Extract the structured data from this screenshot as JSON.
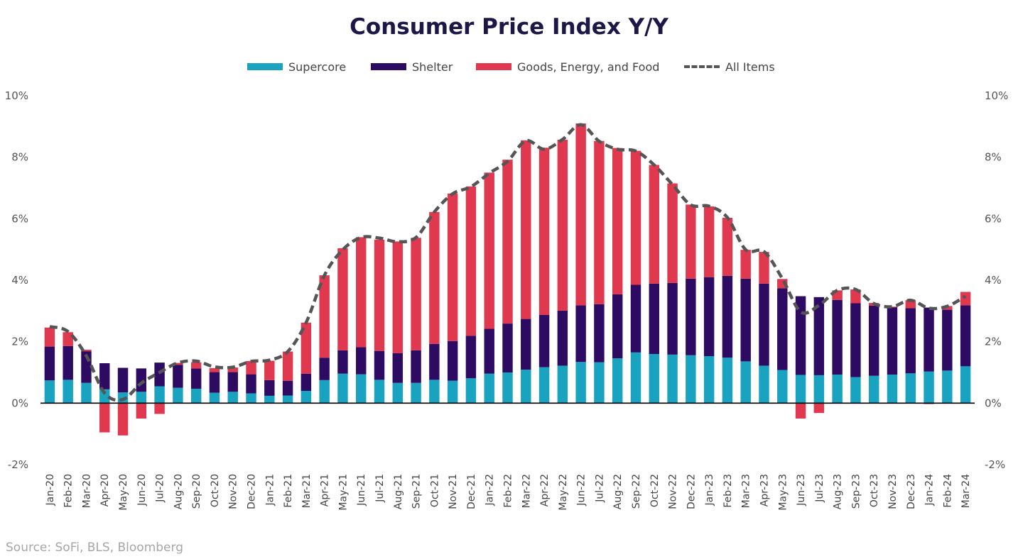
{
  "chart_data": {
    "type": "bar",
    "title": "Consumer Price Index Y/Y",
    "source": "Source: SoFi, BLS, Bloomberg",
    "ylim": [
      -2,
      10
    ],
    "yticks": [
      "-2%",
      "0%",
      "2%",
      "4%",
      "6%",
      "8%",
      "10%"
    ],
    "yticks_right": [
      "-2%",
      "0%",
      "2%",
      "4%",
      "6%",
      "8%",
      "10%"
    ],
    "grid": false,
    "legend_position": "top",
    "stacked": true,
    "categories": [
      "Jan-20",
      "Feb-20",
      "Mar-20",
      "Apr-20",
      "May-20",
      "Jun-20",
      "Jul-20",
      "Aug-20",
      "Sep-20",
      "Oct-20",
      "Nov-20",
      "Dec-20",
      "Jan-21",
      "Feb-21",
      "Mar-21",
      "Apr-21",
      "May-21",
      "Jun-21",
      "Jul-21",
      "Aug-21",
      "Sep-21",
      "Oct-21",
      "Nov-21",
      "Dec-21",
      "Jan-22",
      "Feb-22",
      "Mar-22",
      "Apr-22",
      "May-22",
      "Jun-22",
      "Jul-22",
      "Aug-22",
      "Sep-22",
      "Oct-22",
      "Nov-22",
      "Dec-22",
      "Jan-23",
      "Feb-23",
      "Mar-23",
      "Apr-23",
      "May-23",
      "Jun-23",
      "Jul-23",
      "Aug-23",
      "Sep-23",
      "Oct-23",
      "Nov-23",
      "Dec-23",
      "Jan-24",
      "Feb-24",
      "Mar-24"
    ],
    "series": [
      {
        "name": "Supercore",
        "kind": "bar",
        "color": "#1aa3c0",
        "values": [
          0.74,
          0.76,
          0.66,
          0.45,
          0.35,
          0.37,
          0.55,
          0.5,
          0.47,
          0.34,
          0.37,
          0.32,
          0.24,
          0.25,
          0.4,
          0.75,
          0.96,
          0.94,
          0.76,
          0.66,
          0.66,
          0.76,
          0.73,
          0.81,
          0.96,
          1.0,
          1.09,
          1.17,
          1.22,
          1.34,
          1.33,
          1.46,
          1.65,
          1.6,
          1.58,
          1.56,
          1.53,
          1.48,
          1.36,
          1.22,
          1.08,
          0.92,
          0.91,
          0.93,
          0.85,
          0.89,
          0.93,
          0.97,
          1.03,
          1.06,
          1.2
        ]
      },
      {
        "name": "Shelter",
        "kind": "bar",
        "color": "#2d0b62",
        "values": [
          1.1,
          1.1,
          1.03,
          0.85,
          0.8,
          0.76,
          0.77,
          0.75,
          0.66,
          0.67,
          0.64,
          0.62,
          0.51,
          0.48,
          0.56,
          0.73,
          0.76,
          0.88,
          0.94,
          0.97,
          1.06,
          1.17,
          1.29,
          1.38,
          1.46,
          1.59,
          1.65,
          1.7,
          1.79,
          1.84,
          1.89,
          2.08,
          2.2,
          2.29,
          2.33,
          2.49,
          2.57,
          2.66,
          2.69,
          2.67,
          2.66,
          2.56,
          2.54,
          2.43,
          2.4,
          2.28,
          2.19,
          2.12,
          2.08,
          1.98,
          1.98
        ]
      },
      {
        "name": "Goods, Energy, and Food",
        "kind": "bar",
        "color": "#e0394f",
        "values": [
          0.62,
          0.45,
          0.05,
          -0.95,
          -1.05,
          -0.5,
          -0.35,
          0.06,
          0.2,
          0.13,
          0.15,
          0.43,
          0.63,
          0.95,
          1.66,
          2.68,
          3.32,
          3.58,
          3.62,
          3.63,
          3.66,
          4.29,
          4.8,
          4.86,
          5.08,
          5.33,
          5.81,
          5.44,
          5.56,
          5.92,
          5.31,
          4.76,
          4.36,
          3.86,
          3.24,
          2.41,
          2.3,
          1.89,
          0.94,
          1.03,
          0.3,
          -0.5,
          -0.32,
          0.31,
          0.45,
          0.09,
          0.02,
          0.26,
          -0.03,
          0.12,
          0.44
        ]
      },
      {
        "name": "All Items",
        "kind": "line",
        "color": "#555555",
        "values": [
          2.49,
          2.33,
          1.54,
          0.33,
          0.12,
          0.65,
          1.0,
          1.31,
          1.37,
          1.18,
          1.17,
          1.36,
          1.4,
          1.68,
          2.62,
          4.16,
          4.99,
          5.39,
          5.37,
          5.25,
          5.39,
          6.22,
          6.81,
          7.04,
          7.48,
          7.87,
          8.54,
          8.26,
          8.58,
          9.06,
          8.52,
          8.26,
          8.2,
          7.75,
          7.11,
          6.45,
          6.41,
          6.04,
          4.99,
          4.93,
          4.05,
          2.97,
          3.18,
          3.67,
          3.7,
          3.24,
          3.14,
          3.35,
          3.09,
          3.15,
          3.48
        ]
      }
    ]
  }
}
